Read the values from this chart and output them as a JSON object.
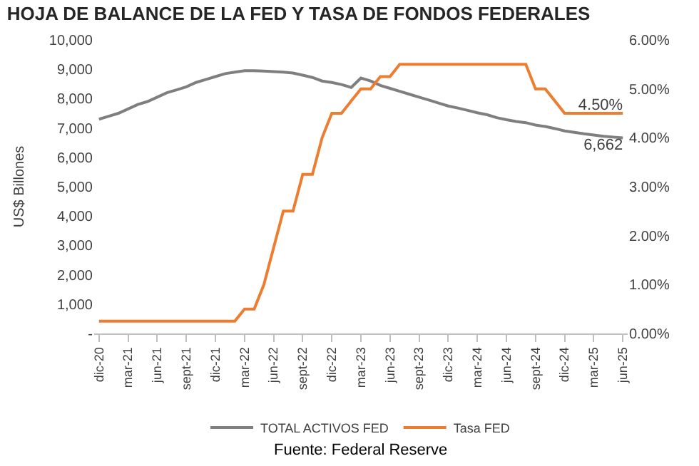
{
  "chart_data": {
    "type": "line",
    "title": "HOJA DE BALANCE DE LA FED Y TASA DE FONDOS FEDERALES",
    "ylabel": "US$ Billones",
    "categories": [
      "dic-20",
      null,
      null,
      "mar-21",
      null,
      null,
      "jun-21",
      null,
      null,
      "sept-21",
      null,
      null,
      "dic-21",
      null,
      null,
      "mar-22",
      null,
      null,
      "jun-22",
      null,
      null,
      "sept-22",
      null,
      null,
      "dic-22",
      null,
      null,
      "mar-23",
      null,
      null,
      "jun-23",
      null,
      null,
      "sept-23",
      null,
      null,
      "dic-23",
      null,
      null,
      "mar-24",
      null,
      null,
      "jun-24",
      null,
      null,
      "sept-24",
      null,
      null,
      "dic-24",
      null,
      null,
      "mar-25",
      null,
      null,
      "jun-25"
    ],
    "series": [
      {
        "name": "TOTAL ACTIVOS FED",
        "color": "#7f7f7f",
        "values": [
          7300,
          7400,
          7500,
          7650,
          7800,
          7900,
          8050,
          8200,
          8300,
          8400,
          8550,
          8650,
          8750,
          8850,
          8900,
          8950,
          8950,
          8940,
          8920,
          8900,
          8870,
          8800,
          8720,
          8600,
          8550,
          8480,
          8380,
          8700,
          8600,
          8450,
          8350,
          8250,
          8150,
          8050,
          7950,
          7850,
          7750,
          7680,
          7600,
          7520,
          7450,
          7350,
          7280,
          7220,
          7180,
          7100,
          7050,
          6980,
          6900,
          6850,
          6800,
          6760,
          6720,
          6690,
          6662
        ],
        "value_labels": [
          null,
          null,
          null,
          null,
          null,
          null,
          null,
          null,
          null,
          null,
          null,
          null,
          null,
          null,
          null,
          null,
          null,
          null,
          null,
          null,
          null,
          null,
          null,
          null,
          null,
          null,
          null,
          null,
          null,
          null,
          null,
          null,
          null,
          null,
          null,
          null,
          null,
          null,
          null,
          null,
          null,
          null,
          null,
          null,
          null,
          null,
          null,
          null,
          null,
          null,
          null,
          null,
          null,
          null,
          "6,662"
        ]
      },
      {
        "name": "Tasa FED",
        "color": "#ed7d31",
        "axis": "y2",
        "values": [
          0.25,
          0.25,
          0.25,
          0.25,
          0.25,
          0.25,
          0.25,
          0.25,
          0.25,
          0.25,
          0.25,
          0.25,
          0.25,
          0.25,
          0.25,
          0.5,
          0.5,
          1.0,
          1.75,
          2.5,
          2.5,
          3.25,
          3.25,
          4.0,
          4.5,
          4.5,
          4.75,
          5.0,
          5.0,
          5.25,
          5.25,
          5.5,
          5.5,
          5.5,
          5.5,
          5.5,
          5.5,
          5.5,
          5.5,
          5.5,
          5.5,
          5.5,
          5.5,
          5.5,
          5.5,
          5.0,
          5.0,
          4.75,
          4.5,
          4.5,
          4.5,
          4.5,
          4.5,
          4.5,
          4.5
        ],
        "value_labels": [
          null,
          null,
          null,
          null,
          null,
          null,
          null,
          null,
          null,
          null,
          null,
          null,
          null,
          null,
          null,
          null,
          null,
          null,
          null,
          null,
          null,
          null,
          null,
          null,
          null,
          null,
          null,
          null,
          null,
          null,
          null,
          null,
          null,
          null,
          null,
          null,
          null,
          null,
          null,
          null,
          null,
          null,
          null,
          null,
          null,
          null,
          null,
          null,
          null,
          null,
          null,
          null,
          null,
          null,
          "4.50%"
        ]
      }
    ],
    "ylim": [
      0,
      10000
    ],
    "yticks": [
      {
        "value": 0,
        "label": "-"
      },
      {
        "value": 1000,
        "label": "1,000"
      },
      {
        "value": 2000,
        "label": "2,000"
      },
      {
        "value": 3000,
        "label": "3,000"
      },
      {
        "value": 4000,
        "label": "4,000"
      },
      {
        "value": 5000,
        "label": "5,000"
      },
      {
        "value": 6000,
        "label": "6,000"
      },
      {
        "value": 7000,
        "label": "7,000"
      },
      {
        "value": 8000,
        "label": "8,000"
      },
      {
        "value": 9000,
        "label": "9,000"
      },
      {
        "value": 10000,
        "label": "10,000"
      }
    ],
    "y2lim": [
      0,
      6
    ],
    "y2ticks": [
      {
        "value": 0,
        "label": "0.00%"
      },
      {
        "value": 1,
        "label": "1.00%"
      },
      {
        "value": 2,
        "label": "2.00%"
      },
      {
        "value": 3,
        "label": "3.00%"
      },
      {
        "value": 4,
        "label": "4.00%"
      },
      {
        "value": 5,
        "label": "5.00%"
      },
      {
        "value": 6,
        "label": "6.00%"
      }
    ],
    "legend": "bottom",
    "annotations": [
      "Fuente: Federal Reserve"
    ]
  }
}
